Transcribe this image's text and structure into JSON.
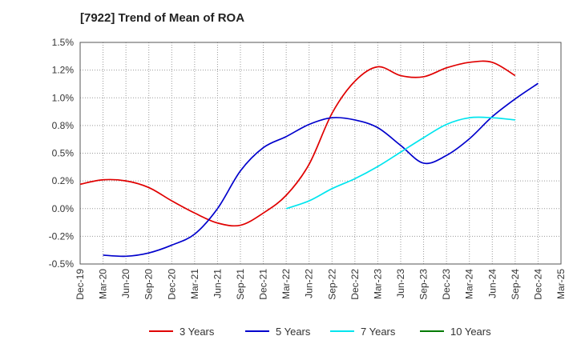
{
  "chart_data": {
    "type": "line",
    "title": "[7922]  Trend of Mean of ROA",
    "xlabel": "",
    "ylabel": "",
    "x": [
      "Dec-19",
      "Mar-20",
      "Jun-20",
      "Sep-20",
      "Dec-20",
      "Mar-21",
      "Jun-21",
      "Sep-21",
      "Dec-21",
      "Mar-22",
      "Jun-22",
      "Sep-22",
      "Dec-22",
      "Mar-23",
      "Jun-23",
      "Sep-23",
      "Dec-23",
      "Mar-24",
      "Jun-24",
      "Sep-24",
      "Dec-24",
      "Mar-25"
    ],
    "ylim": [
      -0.5,
      1.5
    ],
    "yticks": [
      -0.5,
      -0.25,
      0.0,
      0.25,
      0.5,
      0.75,
      1.0,
      1.25,
      1.5
    ],
    "ytick_labels": [
      "-0.5%",
      "-0.2%",
      "0.0%",
      "0.2%",
      "0.5%",
      "0.8%",
      "1.0%",
      "1.2%",
      "1.5%"
    ],
    "grid": "vertical dotted, horizontal dotted",
    "legend_position": "bottom",
    "series": [
      {
        "name": "3 Years",
        "color": "#e00000",
        "values": [
          0.22,
          0.26,
          0.25,
          0.19,
          0.07,
          -0.04,
          -0.13,
          -0.15,
          -0.04,
          0.12,
          0.4,
          0.86,
          1.15,
          1.28,
          1.2,
          1.19,
          1.27,
          1.32,
          1.32,
          1.2,
          null,
          null
        ]
      },
      {
        "name": "5 Years",
        "color": "#0000cc",
        "values": [
          null,
          -0.42,
          -0.43,
          -0.4,
          -0.33,
          -0.23,
          0.0,
          0.34,
          0.55,
          0.65,
          0.76,
          0.82,
          0.8,
          0.73,
          0.57,
          0.41,
          0.48,
          0.63,
          0.83,
          0.99,
          1.13,
          null
        ]
      },
      {
        "name": "7 Years",
        "color": "#00e5ee",
        "values": [
          null,
          null,
          null,
          null,
          null,
          null,
          null,
          null,
          null,
          0.0,
          0.07,
          0.18,
          0.27,
          0.38,
          0.51,
          0.64,
          0.76,
          0.82,
          0.82,
          0.8,
          null,
          null
        ]
      },
      {
        "name": "10 Years",
        "color": "#007a00",
        "values": [
          null,
          null,
          null,
          null,
          null,
          null,
          null,
          null,
          null,
          null,
          null,
          null,
          null,
          null,
          null,
          null,
          null,
          null,
          null,
          null,
          null,
          null
        ]
      }
    ]
  }
}
